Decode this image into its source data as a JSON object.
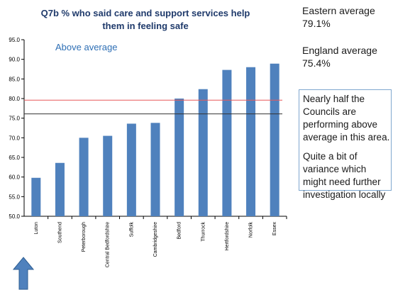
{
  "chart_data": {
    "type": "bar",
    "title_lines": [
      "Q7b % who said care and support services help",
      "them in feeling safe"
    ],
    "categories": [
      "Luton",
      "Southend",
      "Peterborough",
      "Central Bedfordshire",
      "Suffolk",
      "Cambridgeshire",
      "Bedford",
      "Thurrock",
      "Hertfordshire",
      "Norfolk",
      "Essex"
    ],
    "values": [
      59.8,
      63.6,
      70.0,
      70.5,
      73.6,
      73.8,
      80.0,
      82.4,
      87.3,
      88.0,
      88.9
    ],
    "ylim": [
      50,
      95
    ],
    "yticks": [
      "50.0",
      "55.0",
      "60.0",
      "65.0",
      "70.0",
      "75.0",
      "80.0",
      "85.0",
      "90.0",
      "95.0"
    ],
    "reference_lines": [
      {
        "value": 79.6,
        "color": "#e8585a"
      },
      {
        "value": 76.1,
        "color": "#333333"
      }
    ],
    "annotation": "Above average",
    "bar_color": "#4f81bd",
    "grid": false
  },
  "eastern_average": {
    "label": "Eastern average",
    "value": "79.1%"
  },
  "england_average": {
    "label": "England average",
    "value": "75.4%"
  },
  "callout": {
    "p1": "Nearly half the Councils are performing above average in this area.",
    "p2": "Quite a bit of variance which might need further investigation locally"
  },
  "arrow_color": "#4f81bd"
}
